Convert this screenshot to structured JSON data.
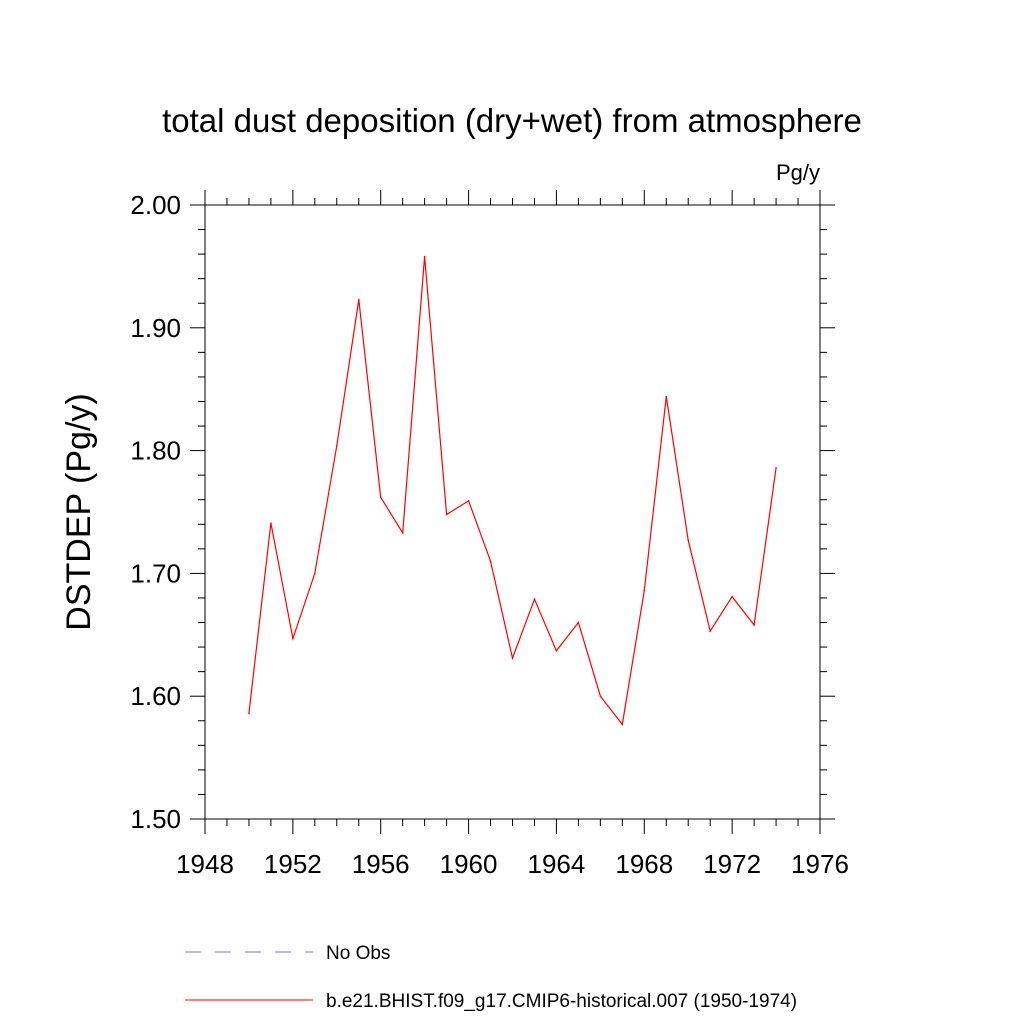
{
  "chart_data": {
    "type": "line",
    "title": "total dust deposition (dry+wet) from atmosphere",
    "units_label": "Pg/y",
    "ylabel": "DSTDEP  (Pg/y)",
    "xlabel": "",
    "xlim": [
      1948,
      1976
    ],
    "ylim": [
      1.5,
      2.0
    ],
    "x_ticks": [
      1948,
      1952,
      1956,
      1960,
      1964,
      1968,
      1972,
      1976
    ],
    "x_tick_labels": [
      "1948",
      "1952",
      "1956",
      "1960",
      "1964",
      "1968",
      "1972",
      "1976"
    ],
    "y_ticks": [
      1.5,
      1.6,
      1.7,
      1.8,
      1.9,
      2.0
    ],
    "y_tick_labels": [
      "1.50",
      "1.60",
      "1.70",
      "1.80",
      "1.90",
      "2.00"
    ],
    "grid": false,
    "legend_placement": "bottom",
    "series": [
      {
        "name": "b.e21.BHIST.f09_g17.CMIP6-historical.007 (1950-1974)",
        "color": "#ff0000",
        "style": "solid",
        "x": [
          1950,
          1951,
          1952,
          1953,
          1954,
          1955,
          1956,
          1957,
          1958,
          1959,
          1960,
          1961,
          1962,
          1963,
          1964,
          1965,
          1966,
          1967,
          1968,
          1969,
          1970,
          1971,
          1972,
          1973,
          1974
        ],
        "values": [
          1.586,
          1.741,
          1.647,
          1.7,
          1.804,
          1.923,
          1.762,
          1.733,
          1.958,
          1.748,
          1.759,
          1.71,
          1.631,
          1.679,
          1.637,
          1.66,
          1.6,
          1.577,
          1.686,
          1.844,
          1.727,
          1.653,
          1.681,
          1.658,
          1.786
        ]
      }
    ],
    "legend": [
      {
        "label": "No Obs",
        "color": "#7a7ab8",
        "style": "dashed"
      },
      {
        "label": "b.e21.BHIST.f09_g17.CMIP6-historical.007 (1950-1974)",
        "color": "#ff0000",
        "style": "solid"
      }
    ]
  }
}
